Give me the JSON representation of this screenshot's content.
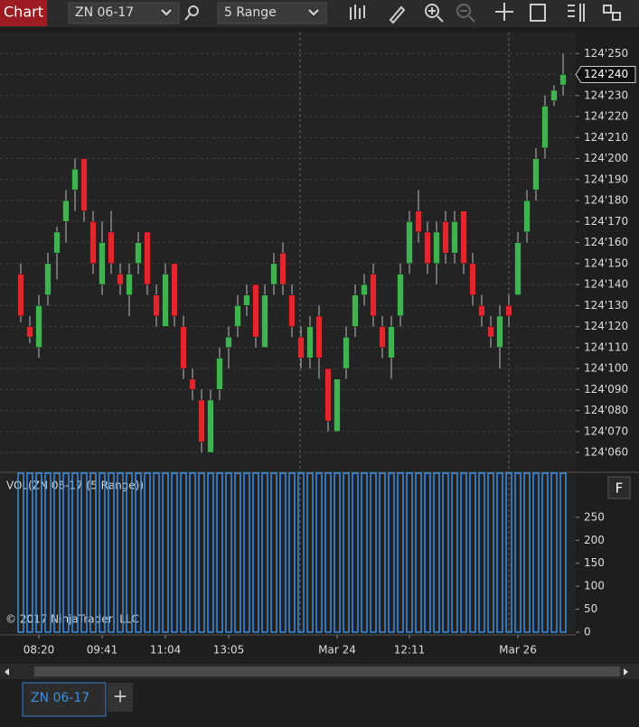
{
  "ui": {
    "window_title": "Chart",
    "instrument": "ZN 06-17",
    "period": "5 Range",
    "panel_button": "F",
    "copyright": "© 2017 NinjaTrader, LLC",
    "tabs": [
      "ZN 06-17"
    ],
    "add_tab": "+"
  },
  "chart_data": [
    {
      "type": "candlestick",
      "categories": [
        null,
        null,
        "08:20",
        null,
        null,
        null,
        null,
        null,
        null,
        "09:41",
        null,
        null,
        null,
        null,
        null,
        null,
        "11:04",
        null,
        null,
        null,
        null,
        null,
        null,
        "13:05",
        null,
        null,
        null,
        null,
        null,
        null,
        null,
        null,
        null,
        null,
        null,
        "Mar 24",
        null,
        null,
        null,
        null,
        null,
        null,
        null,
        "12:11",
        null,
        null,
        null,
        null,
        null,
        null,
        null,
        null,
        null,
        null,
        null,
        "Mar 26",
        null,
        null,
        null,
        null,
        null
      ],
      "series": [
        {
          "name": "ZN 06-17",
          "up_color": "#3fb34f",
          "down_color": "#e3262e",
          "open": [
            124145,
            124120,
            124110,
            124135,
            124155,
            124170,
            124185,
            124200,
            124170,
            124140,
            124165,
            124145,
            124135,
            124150,
            124165,
            124135,
            124120,
            124150,
            124120,
            124095,
            124085,
            124060,
            124090,
            124110,
            124120,
            124130,
            124140,
            124110,
            124140,
            124155,
            124135,
            124115,
            124105,
            124125,
            124100,
            124070,
            124100,
            124120,
            124135,
            124145,
            124120,
            124105,
            124125,
            124150,
            124175,
            124165,
            124150,
            124170,
            124155,
            124175,
            124150,
            124130,
            124120,
            124110,
            124130,
            124135,
            124165,
            124185,
            124205,
            124227.5,
            124235
          ],
          "high": [
            124150,
            124125,
            124135,
            124155,
            124167.5,
            124185,
            124200,
            124200,
            124175,
            124170,
            124175,
            124150,
            124150,
            124165,
            124165,
            124140,
            124150,
            124150,
            124125,
            124100,
            124090,
            124090,
            124110,
            124120,
            124135,
            124140,
            124140,
            124140,
            124155,
            124160,
            124140,
            124120,
            124125,
            124130,
            124100,
            124095,
            124120,
            124140,
            124145,
            124150,
            124125,
            124125,
            124150,
            124175,
            124185,
            124170,
            124170,
            124175,
            124175,
            124175,
            124155,
            124135,
            124125,
            124130,
            124135,
            124165,
            124185,
            124205,
            124230,
            124235,
            124250
          ],
          "low": [
            124122,
            124112,
            124105,
            124130,
            124142.5,
            124160,
            124175,
            124170,
            124145,
            124135,
            124145,
            124135,
            124125,
            124145,
            124135,
            124120,
            124120,
            124120,
            124095,
            124085,
            124060,
            124060,
            124085,
            124100,
            124115,
            124125,
            124110,
            124110,
            124135,
            124135,
            124115,
            124100,
            124100,
            124095,
            124070,
            124070,
            124095,
            124115,
            124130,
            124120,
            124105,
            124095,
            124120,
            124145,
            124160,
            124145,
            124140,
            124150,
            124150,
            124145,
            124130,
            124120,
            124110,
            124100,
            124120,
            124135,
            124160,
            124180,
            124200,
            124225,
            124230
          ],
          "close": [
            124125,
            124115,
            124130,
            124150,
            124165,
            124180,
            124195,
            124175,
            124150,
            124160,
            124150,
            124140,
            124145,
            124160,
            124140,
            124125,
            124145,
            124125,
            124100,
            124090,
            124065,
            124085,
            124105,
            124115,
            124130,
            124135,
            124115,
            124135,
            124150,
            124140,
            124120,
            124105,
            124120,
            124105,
            124075,
            124095,
            124115,
            124135,
            124140,
            124125,
            124110,
            124120,
            124145,
            124170,
            124165,
            124150,
            124165,
            124155,
            124170,
            124150,
            124135,
            124125,
            124115,
            124125,
            124125,
            124160,
            124180,
            124200,
            124225,
            124232.5,
            124240
          ]
        }
      ],
      "last_price": {
        "value": 124240,
        "label": "124'240"
      },
      "ylim": [
        124051,
        124260
      ],
      "yticks": [
        {
          "value": 124060,
          "label": "124'060"
        },
        {
          "value": 124070,
          "label": "124'070"
        },
        {
          "value": 124080,
          "label": "124'080"
        },
        {
          "value": 124090,
          "label": "124'090"
        },
        {
          "value": 124100,
          "label": "124'100"
        },
        {
          "value": 124110,
          "label": "124'110"
        },
        {
          "value": 124120,
          "label": "124'120"
        },
        {
          "value": 124130,
          "label": "124'130"
        },
        {
          "value": 124140,
          "label": "124'140"
        },
        {
          "value": 124150,
          "label": "124'150"
        },
        {
          "value": 124160,
          "label": "124'160"
        },
        {
          "value": 124170,
          "label": "124'170"
        },
        {
          "value": 124180,
          "label": "124'180"
        },
        {
          "value": 124190,
          "label": "124'190"
        },
        {
          "value": 124200,
          "label": "124'200"
        },
        {
          "value": 124210,
          "label": "124'210"
        },
        {
          "value": 124220,
          "label": "124'220"
        },
        {
          "value": 124230,
          "label": "124'230"
        },
        {
          "value": 124240,
          "label": "124'240"
        },
        {
          "value": 124250,
          "label": "124'250"
        }
      ],
      "grid": true
    },
    {
      "type": "bar",
      "title": "VOL(ZN 06-17 (5 Range))",
      "color": "#3d8fe0",
      "values": [
        346,
        346,
        346,
        346,
        346,
        346,
        346,
        346,
        346,
        346,
        346,
        346,
        346,
        346,
        346,
        346,
        346,
        346,
        346,
        346,
        346,
        346,
        346,
        346,
        346,
        346,
        346,
        346,
        346,
        346,
        346,
        346,
        346,
        346,
        346,
        346,
        346,
        346,
        346,
        346,
        346,
        346,
        346,
        346,
        346,
        346,
        346,
        346,
        346,
        346,
        346,
        346,
        346,
        346,
        346,
        346,
        346,
        346,
        346,
        346,
        346
      ],
      "ylim": [
        0,
        346
      ],
      "yticks": [
        0,
        50,
        100,
        150,
        200,
        250
      ],
      "grid": false
    }
  ]
}
